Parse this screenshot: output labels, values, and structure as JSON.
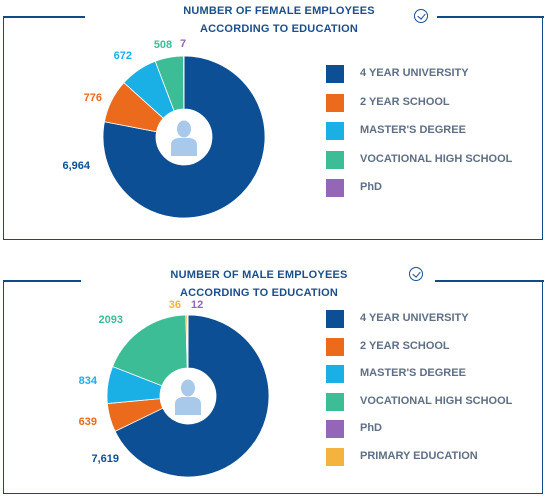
{
  "chart_data": [
    {
      "type": "pie",
      "donut": true,
      "title": "NUMBER OF FEMALE EMPLOYEES\nACCORDING TO EDUCATION",
      "title_lines": [
        "NUMBER OF FEMALE EMPLOYEES",
        "ACCORDING TO EDUCATION"
      ],
      "categories": [
        "4 YEAR UNIVERSITY",
        "2 YEAR SCHOOL",
        "MASTER'S DEGREE",
        "VOCATIONAL HIGH SCHOOL",
        "PhD"
      ],
      "values": [
        6964,
        776,
        672,
        508,
        7
      ],
      "labels": [
        "6,964",
        "776",
        "672",
        "508",
        "7"
      ],
      "colors": [
        "#0d4f94",
        "#ec6a1b",
        "#1ab0e6",
        "#3dbd95",
        "#9466b8"
      ],
      "legend_position": "right"
    },
    {
      "type": "pie",
      "donut": true,
      "title": "NUMBER OF MALE EMPLOYEES\nACCORDING TO EDUCATION",
      "title_lines": [
        "NUMBER OF MALE EMPLOYEES",
        "ACCORDING TO EDUCATION"
      ],
      "categories": [
        "4 YEAR UNIVERSITY",
        "2 YEAR SCHOOL",
        "MASTER'S DEGREE",
        "VOCATIONAL HIGH SCHOOL",
        "PhD",
        "PRIMARY EDUCATION"
      ],
      "values": [
        7619,
        639,
        834,
        2093,
        12,
        36
      ],
      "labels": [
        "7,619",
        "639",
        "834",
        "2093",
        "12",
        "36"
      ],
      "colors": [
        "#0d4f94",
        "#ec6a1b",
        "#1ab0e6",
        "#3dbd95",
        "#9466b8",
        "#f4b23e"
      ],
      "legend_position": "right"
    }
  ],
  "icons": {
    "check": "check-circle-icon",
    "person": "person-icon"
  },
  "colors": {
    "frame": "#0e4a8a",
    "title": "#1b4f8c",
    "legend_text": "#5e6f86",
    "person": "#a9c9eb"
  }
}
